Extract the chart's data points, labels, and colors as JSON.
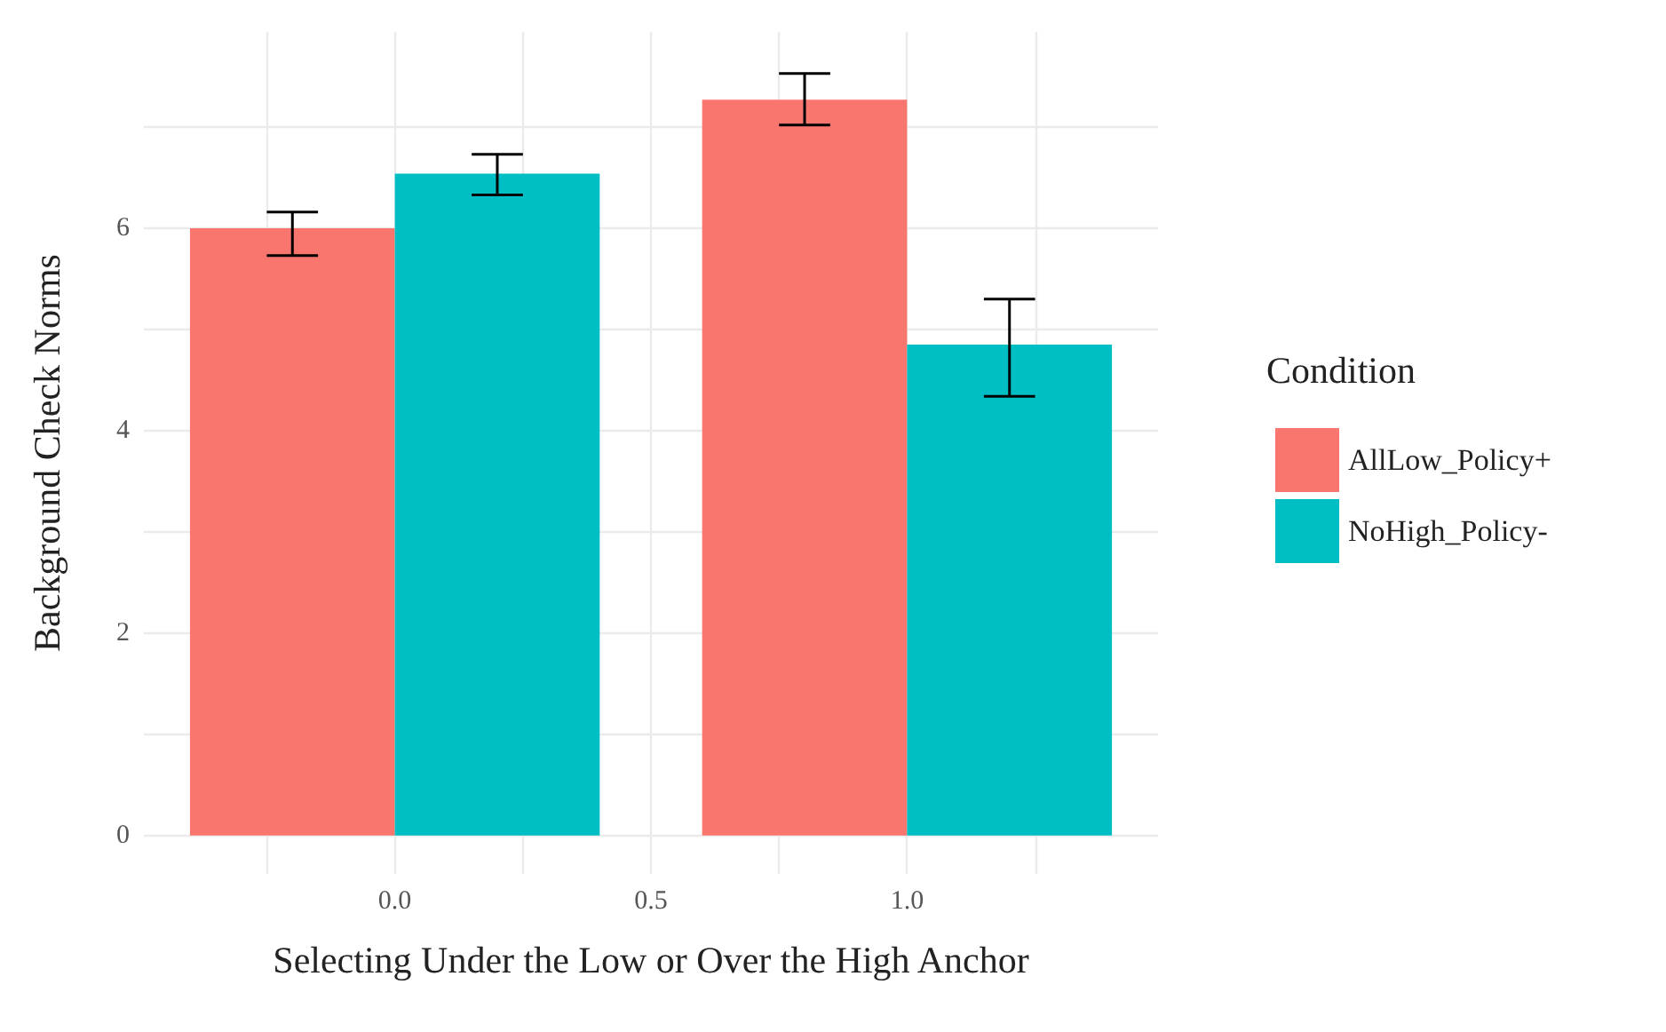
{
  "chart_data": {
    "type": "bar",
    "xlabel": "Selecting Under the Low or Over the High Anchor",
    "ylabel": "Background Check Norms",
    "legend_title": "Condition",
    "series": [
      {
        "name": "AllLow_Policy+",
        "color": "#f8766d",
        "x": [
          -0.2,
          0.8
        ],
        "values": [
          6.0,
          7.27
        ],
        "errors": [
          [
            5.73,
            6.16
          ],
          [
            7.02,
            7.53
          ]
        ]
      },
      {
        "name": "NoHigh_Policy-",
        "color": "#00bfc4",
        "x": [
          0.2,
          1.2
        ],
        "values": [
          6.54,
          4.85
        ],
        "errors": [
          [
            6.33,
            6.73
          ],
          [
            4.34,
            5.3
          ]
        ]
      }
    ],
    "xlim": [
      -0.49,
      1.49
    ],
    "xticks": [
      {
        "value": -0.25,
        "label": null
      },
      {
        "value": 0,
        "label": "0.0"
      },
      {
        "value": 0.25,
        "label": null
      },
      {
        "value": 0.5,
        "label": "0.5"
      },
      {
        "value": 0.75,
        "label": null
      },
      {
        "value": 1,
        "label": "1.0"
      },
      {
        "value": 1.25,
        "label": null
      }
    ],
    "ylim": [
      -0.38,
      7.94
    ],
    "yticks": [
      0,
      {
        "value": 1,
        "label": null
      },
      2,
      {
        "value": 3,
        "label": null
      },
      4,
      {
        "value": 5,
        "label": null
      },
      6,
      {
        "value": 7,
        "label": null
      }
    ],
    "grid": true,
    "legend": "right"
  }
}
